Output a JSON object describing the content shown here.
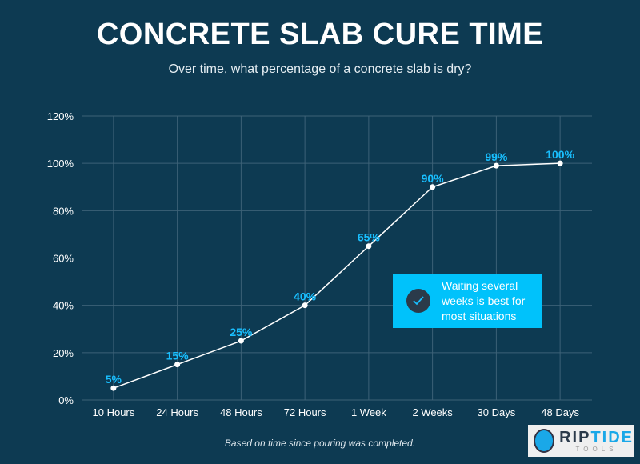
{
  "header": {
    "title": "CONCRETE SLAB CURE TIME",
    "subtitle": "Over time, what percentage of a concrete slab is dry?"
  },
  "chart_data": {
    "type": "line",
    "categories": [
      "10 Hours",
      "24 Hours",
      "48 Hours",
      "72 Hours",
      "1 Week",
      "2 Weeks",
      "30 Days",
      "48 Days"
    ],
    "values": [
      5,
      15,
      25,
      40,
      65,
      90,
      99,
      100
    ],
    "data_labels": [
      "5%",
      "15%",
      "25%",
      "40%",
      "65%",
      "90%",
      "99%",
      "100%"
    ],
    "yticks": [
      "0%",
      "20%",
      "40%",
      "60%",
      "80%",
      "100%",
      "120%"
    ],
    "ylim": [
      0,
      120
    ],
    "grid": true,
    "colors": {
      "background": "#0d3a52",
      "line": "#ffffff",
      "label": "#19bfff",
      "grid": "#3d6277"
    }
  },
  "callout": {
    "text_lines": [
      "Waiting several",
      "weeks is best for",
      "most situations"
    ],
    "icon": "checkmark-icon",
    "color": "#00c2fb"
  },
  "footnote": "Based on time since pouring was completed.",
  "logo": {
    "main_part1": "RIP",
    "main_part2": "TIDE",
    "sub": "TOOLS"
  }
}
